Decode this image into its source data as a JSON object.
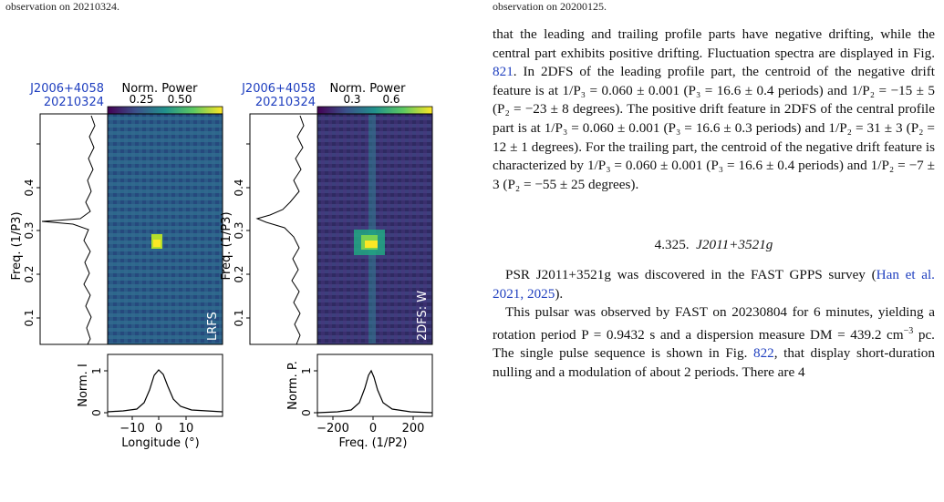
{
  "top_captions": {
    "left": "observation on 20210324.",
    "right": "observation on 20200125."
  },
  "figure": {
    "panels": [
      {
        "psr": "J2006+4058",
        "date": "20210324",
        "colorbar_label": "Norm. Power",
        "colorbar_ticks": [
          "0.25",
          "0.50"
        ],
        "map_label": "LRFS",
        "y_label": "Freq. (1/P3)",
        "y_ticks": [
          "0.1",
          "0.2",
          "0.3",
          "0.4"
        ],
        "bottom_y_label": "Norm. I",
        "bottom_y_ticks": [
          "0",
          "1"
        ],
        "x_ticks": [
          "−10",
          "0",
          "10"
        ],
        "x_label": "Longitude (°)"
      },
      {
        "psr": "J2006+4058",
        "date": "20210324",
        "colorbar_label": "Norm. Power",
        "colorbar_ticks": [
          "0.3",
          "0.6"
        ],
        "map_label": "2DFS: W",
        "y_label": "Freq. (1/P3)",
        "y_ticks": [
          "0.1",
          "0.2",
          "0.3",
          "0.4"
        ],
        "bottom_y_label": "Norm. P.",
        "bottom_y_ticks": [
          "0",
          "1"
        ],
        "x_ticks": [
          "−200",
          "0",
          "200"
        ],
        "x_label": "Freq. (1/P2)"
      }
    ],
    "colors": {
      "colormap_dark": "#3b1f55",
      "colormap_mid": "#2c7f8e",
      "colormap_bright": "#fde725",
      "axis": "#000000"
    }
  },
  "text": {
    "p1": {
      "a": "that the leading and trailing profile parts have negative drifting, while the central part exhibits positive drifting. Fluctuation spectra are displayed in Fig. ",
      "fig": "821",
      "b": ". In 2DFS of the leading profile part, the centroid of the negative drift feature is at 1/P₃ = 0.060 ± 0.001 (P₃ = 16.6 ± 0.4 periods) and 1/P₂ = −15 ± 5 (P₂ = −23 ± 8 degrees). The positive drift feature in 2DFS of the central profile part is at 1/P₃ = 0.060 ± 0.001 (P₃ = 16.6 ± 0.3 periods) and 1/P₂ = 31 ± 3 (P₂ = 12 ± 1 degrees). For the trailing part, the centroid of the negative drift feature is characterized by 1/P₃ = 0.060 ± 0.001 (P₃ = 16.6 ± 0.4 periods) and 1/P₂ = −7 ± 3 (P₂ = −55 ± 25 degrees)."
    },
    "section": {
      "number": "4.325.",
      "name": "J2011+3521g"
    },
    "p2": {
      "a": "PSR J2011+3521g was discovered in the FAST GPPS survey (",
      "cite": "Han et al. 2021, 2025",
      "b": ")."
    },
    "p3": {
      "a": "This pulsar was observed by FAST on 20230804 for 6 minutes, yielding a rotation period P = 0.9432 s and a dispersion measure DM = 439.2 cm",
      "sup": "−3",
      "b": " pc. The single pulse sequence is shown in Fig. ",
      "fig": "822",
      "c": ", that display short-duration nulling and a modulation of about 2 periods. There are 4"
    }
  }
}
